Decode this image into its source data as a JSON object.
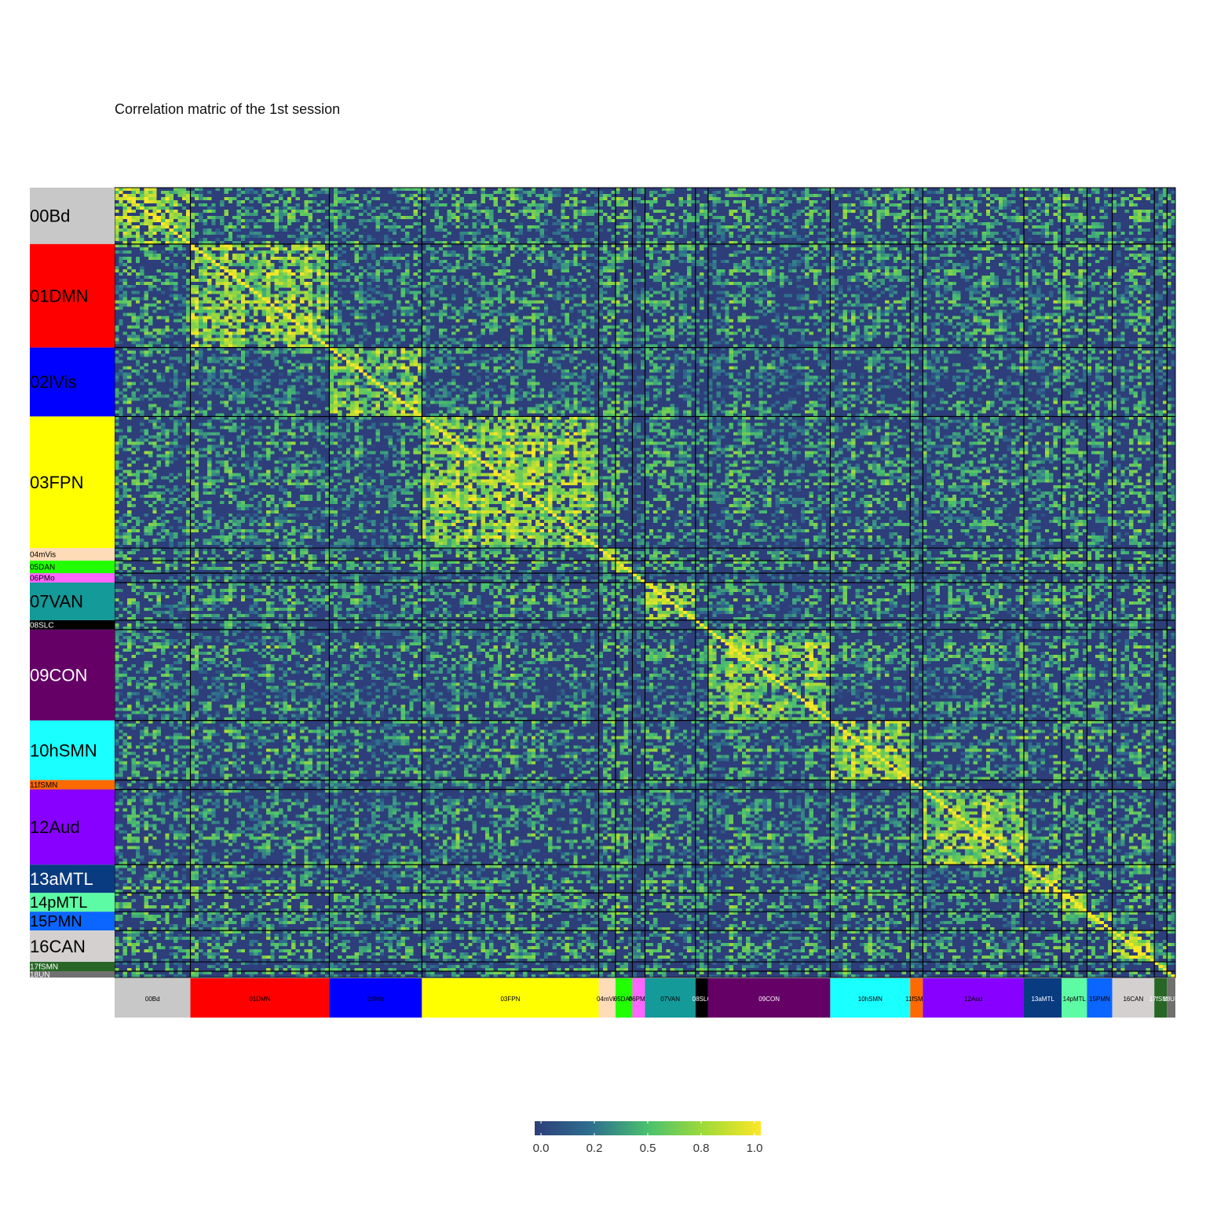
{
  "chart_data": {
    "type": "heatmap",
    "title": "Correlation matric of the 1st session",
    "networks": [
      {
        "label": "00Bd",
        "size": 18,
        "color": "#c8c8c8",
        "text_color": "#000000"
      },
      {
        "label": "01DMN",
        "size": 33,
        "color": "#ff0000",
        "text_color": "#000000"
      },
      {
        "label": "02lVis",
        "size": 22,
        "color": "#0000ff",
        "text_color": "#000000"
      },
      {
        "label": "03FPN",
        "size": 42,
        "color": "#ffff00",
        "text_color": "#000000"
      },
      {
        "label": "04mVis",
        "size": 4,
        "color": "#ffdcb8",
        "text_color": "#000000"
      },
      {
        "label": "05DAN",
        "size": 4,
        "color": "#22ff00",
        "text_color": "#000000"
      },
      {
        "label": "06PMo",
        "size": 3,
        "color": "#ff66ff",
        "text_color": "#000000"
      },
      {
        "label": "07VAN",
        "size": 12,
        "color": "#139a99",
        "text_color": "#000000"
      },
      {
        "label": "08SLC",
        "size": 3,
        "color": "#000000",
        "text_color": "#ffffff"
      },
      {
        "label": "09CON",
        "size": 29,
        "color": "#650066",
        "text_color": "#ffffff"
      },
      {
        "label": "10hSMN",
        "size": 19,
        "color": "#1affff",
        "text_color": "#000000"
      },
      {
        "label": "11fSMN",
        "size": 3,
        "color": "#ff6a00",
        "text_color": "#000000"
      },
      {
        "label": "12Aud",
        "size": 24,
        "color": "#8800ff",
        "text_color": "#000000"
      },
      {
        "label": "13aMTL",
        "size": 9,
        "color": "#093b80",
        "text_color": "#ffffff"
      },
      {
        "label": "14pMTL",
        "size": 6,
        "color": "#5dfba4",
        "text_color": "#000000"
      },
      {
        "label": "15PMN",
        "size": 6,
        "color": "#0b65ff",
        "text_color": "#000000"
      },
      {
        "label": "16CAN",
        "size": 10,
        "color": "#d3d0cf",
        "text_color": "#000000"
      },
      {
        "label": "17fSMN",
        "size": 3,
        "color": "#286626",
        "text_color": "#ffffff"
      },
      {
        "label": "18UN",
        "size": 2,
        "color": "#707070",
        "text_color": "#ffffff"
      }
    ],
    "value_range": [
      0.0,
      1.0
    ],
    "colorscale": [
      "#2d3e7a",
      "#2e6f8e",
      "#4ac16d",
      "#a0da39",
      "#fde725"
    ],
    "colorbar": {
      "ticks": [
        0.0,
        0.25,
        0.5,
        0.75,
        1.0
      ],
      "tick_labels": [
        "0.0",
        "0.2",
        "0.5",
        "0.8",
        "1.0"
      ],
      "placement": "bottom"
    },
    "within_network_mean": 0.55,
    "between_network_mean": 0.2,
    "diagonal": 1.0,
    "legend": "bottom"
  }
}
